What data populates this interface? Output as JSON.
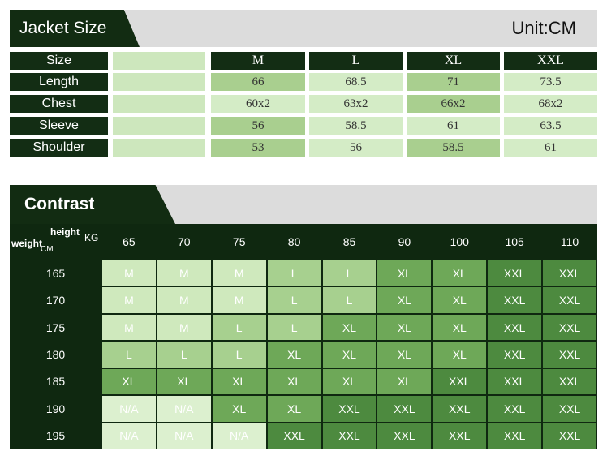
{
  "jacket_size": {
    "title": "Jacket Size",
    "unit": "Unit:CM",
    "header_label": "Size",
    "columns": [
      "M",
      "L",
      "XL",
      "XXL"
    ],
    "rows": [
      {
        "label": "Length",
        "values": [
          "66",
          "68.5",
          "71",
          "73.5"
        ]
      },
      {
        "label": "Chest",
        "values": [
          "60x2",
          "63x2",
          "66x2",
          "68x2"
        ]
      },
      {
        "label": "Sleeve",
        "values": [
          "56",
          "58.5",
          "61",
          "63.5"
        ]
      },
      {
        "label": "Shoulder",
        "values": [
          "53",
          "56",
          "58.5",
          "61"
        ]
      }
    ]
  },
  "contrast": {
    "title": "Contrast",
    "corner": {
      "top": "height",
      "top_unit": "KG",
      "left": "weight",
      "left_unit": "CM"
    },
    "columns": [
      65,
      70,
      75,
      80,
      85,
      90,
      100,
      105,
      110
    ],
    "size_colors": {
      "M": "#cfe9bd",
      "L": "#a7d08f",
      "XL": "#6ea858",
      "XXL": "#4d8a3f",
      "N/A": "#dcf0cf"
    },
    "rows": [
      {
        "label": 165,
        "sizes": [
          "M",
          "M",
          "M",
          "L",
          "L",
          "XL",
          "XL",
          "XXL",
          "XXL"
        ]
      },
      {
        "label": 170,
        "sizes": [
          "M",
          "M",
          "M",
          "L",
          "L",
          "XL",
          "XL",
          "XXL",
          "XXL"
        ]
      },
      {
        "label": 175,
        "sizes": [
          "M",
          "M",
          "L",
          "L",
          "XL",
          "XL",
          "XL",
          "XXL",
          "XXL"
        ]
      },
      {
        "label": 180,
        "sizes": [
          "L",
          "L",
          "L",
          "XL",
          "XL",
          "XL",
          "XL",
          "XXL",
          "XXL"
        ]
      },
      {
        "label": 185,
        "sizes": [
          "XL",
          "XL",
          "XL",
          "XL",
          "XL",
          "XL",
          "XXL",
          "XXL",
          "XXL"
        ]
      },
      {
        "label": 190,
        "sizes": [
          "N/A",
          "N/A",
          "XL",
          "XL",
          "XXL",
          "XXL",
          "XXL",
          "XXL",
          "XXL"
        ]
      },
      {
        "label": 195,
        "sizes": [
          "N/A",
          "N/A",
          "N/A",
          "XXL",
          "XXL",
          "XXL",
          "XXL",
          "XXL",
          "XXL"
        ]
      }
    ]
  }
}
